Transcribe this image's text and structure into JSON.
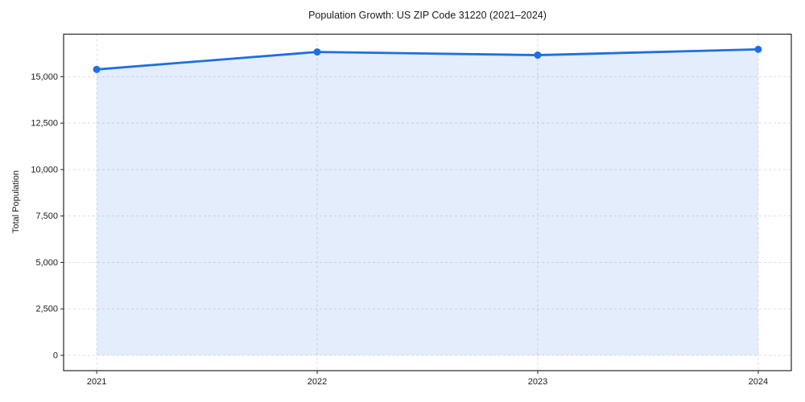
{
  "chart_data": {
    "type": "line",
    "title": "Population Growth: US ZIP Code 31220 (2021–2024)",
    "xlabel": "",
    "ylabel": "Total Population",
    "x": [
      2021,
      2022,
      2023,
      2024
    ],
    "x_labels": [
      "2021",
      "2022",
      "2023",
      "2024"
    ],
    "series": [
      {
        "name": "Total Population",
        "values": [
          15390,
          16330,
          16160,
          16470
        ]
      }
    ],
    "fill_to_zero": true,
    "xlim": [
      2020.85,
      2024.15
    ],
    "ylim": [
      -823,
      17287
    ],
    "ytick_values": [
      0,
      2500,
      5000,
      7500,
      10000,
      12500,
      15000
    ],
    "ytick_labels": [
      "0",
      "2,500",
      "5,000",
      "7,500",
      "10,000",
      "12,500",
      "15,000"
    ],
    "grid": "dashed",
    "legend": "none",
    "colors": {
      "line": "#1f6fe0",
      "fill": "rgba(31,111,224,0.12)",
      "grid": "#d9d9d9",
      "spine": "#262626",
      "text": "#1a1a1a"
    }
  }
}
